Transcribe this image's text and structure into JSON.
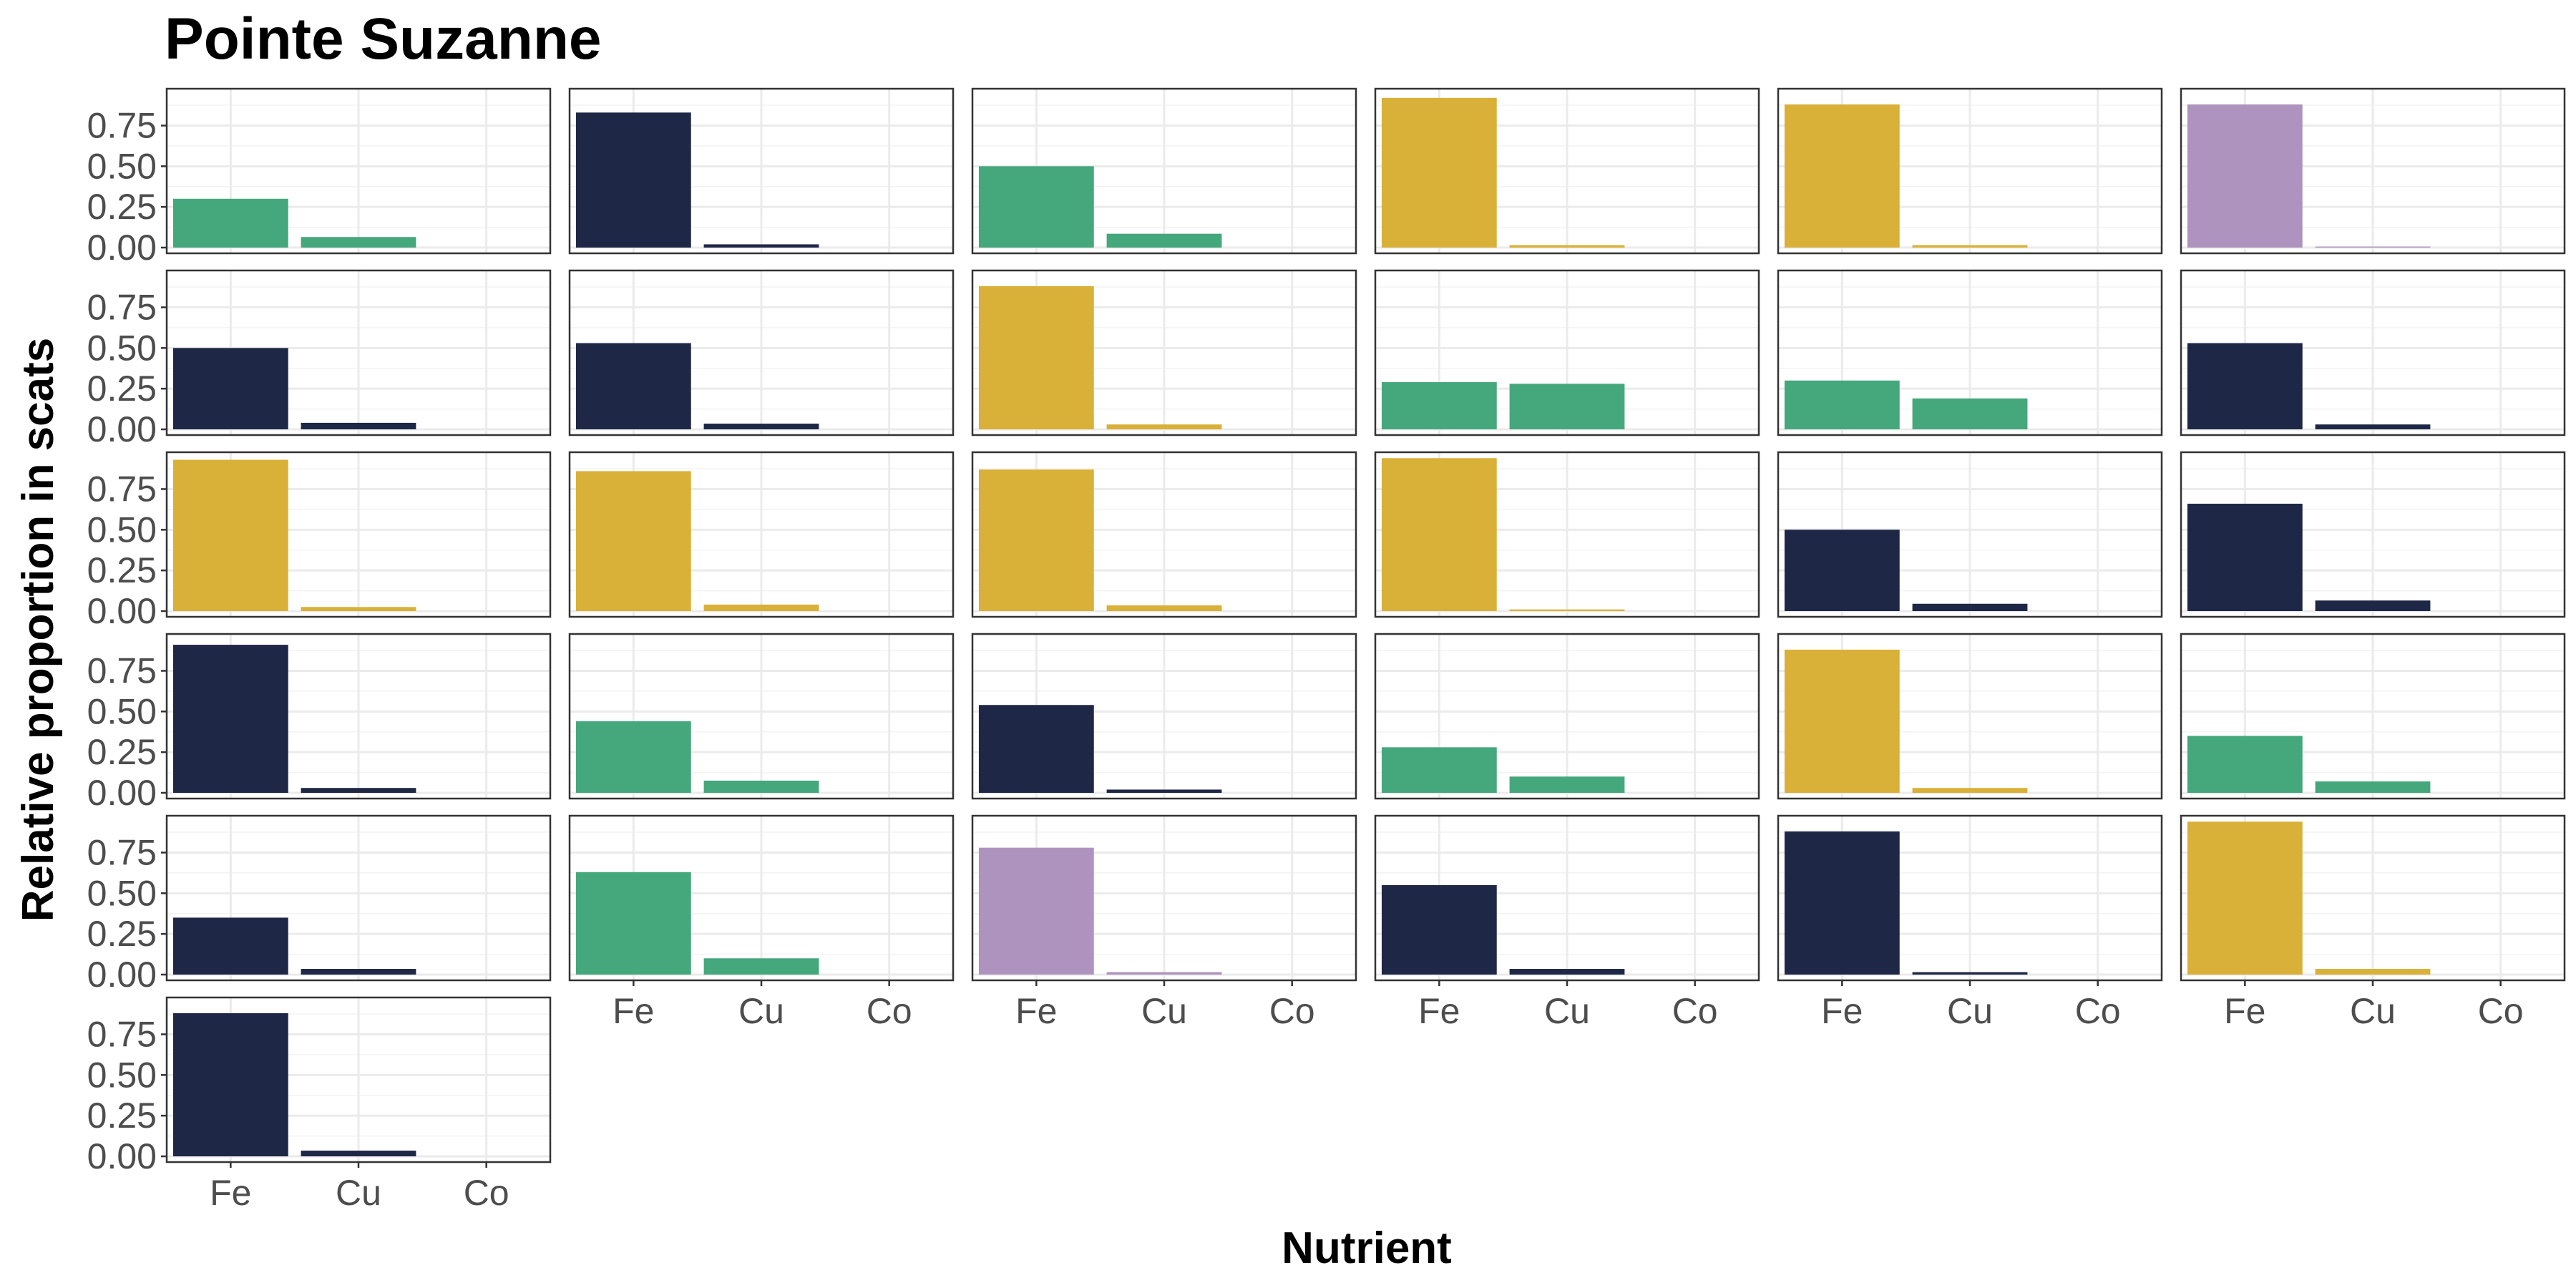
{
  "chart_data": {
    "type": "bar",
    "layout": "facet-grid",
    "title": "Pointe Suzanne",
    "xlabel": "Nutrient",
    "ylabel": "Relative proportion in scats",
    "categories": [
      "Fe",
      "Cu",
      "Co"
    ],
    "ylim": [
      0,
      0.95
    ],
    "yticks": [
      "0.00",
      "0.25",
      "0.50",
      "0.75"
    ],
    "ytick_values": [
      0,
      0.25,
      0.5,
      0.75
    ],
    "grid": true,
    "columns": 6,
    "colors": {
      "navy": "#1e2746",
      "green": "#45a77c",
      "gold": "#d9b038",
      "purple": "#ae93bf"
    },
    "panels": [
      {
        "color": "green",
        "values": [
          0.3,
          0.065,
          0.0
        ]
      },
      {
        "color": "navy",
        "values": [
          0.83,
          0.02,
          0.0
        ]
      },
      {
        "color": "green",
        "values": [
          0.5,
          0.085,
          0.0
        ]
      },
      {
        "color": "gold",
        "values": [
          0.92,
          0.015,
          0.0
        ]
      },
      {
        "color": "gold",
        "values": [
          0.88,
          0.015,
          0.0
        ]
      },
      {
        "color": "purple",
        "values": [
          0.88,
          0.005,
          0.0
        ]
      },
      {
        "color": "navy",
        "values": [
          0.5,
          0.04,
          0.0
        ]
      },
      {
        "color": "navy",
        "values": [
          0.53,
          0.035,
          0.0
        ]
      },
      {
        "color": "gold",
        "values": [
          0.88,
          0.03,
          0.0
        ]
      },
      {
        "color": "green",
        "values": [
          0.29,
          0.28,
          0.0
        ]
      },
      {
        "color": "green",
        "values": [
          0.3,
          0.19,
          0.0
        ]
      },
      {
        "color": "navy",
        "values": [
          0.53,
          0.03,
          0.0
        ]
      },
      {
        "color": "gold",
        "values": [
          0.93,
          0.025,
          0.0
        ]
      },
      {
        "color": "gold",
        "values": [
          0.86,
          0.04,
          0.0
        ]
      },
      {
        "color": "gold",
        "values": [
          0.87,
          0.035,
          0.0
        ]
      },
      {
        "color": "gold",
        "values": [
          0.94,
          0.01,
          0.0
        ]
      },
      {
        "color": "navy",
        "values": [
          0.5,
          0.045,
          0.0
        ]
      },
      {
        "color": "navy",
        "values": [
          0.66,
          0.065,
          0.0
        ]
      },
      {
        "color": "navy",
        "values": [
          0.91,
          0.03,
          0.0
        ]
      },
      {
        "color": "green",
        "values": [
          0.44,
          0.075,
          0.0
        ]
      },
      {
        "color": "navy",
        "values": [
          0.54,
          0.02,
          0.0
        ]
      },
      {
        "color": "green",
        "values": [
          0.28,
          0.1,
          0.0
        ]
      },
      {
        "color": "gold",
        "values": [
          0.88,
          0.03,
          0.0
        ]
      },
      {
        "color": "green",
        "values": [
          0.35,
          0.07,
          0.0
        ]
      },
      {
        "color": "navy",
        "values": [
          0.35,
          0.035,
          0.0
        ]
      },
      {
        "color": "green",
        "values": [
          0.63,
          0.1,
          0.0
        ]
      },
      {
        "color": "purple",
        "values": [
          0.78,
          0.015,
          0.0
        ]
      },
      {
        "color": "navy",
        "values": [
          0.55,
          0.035,
          0.0
        ]
      },
      {
        "color": "navy",
        "values": [
          0.88,
          0.015,
          0.0
        ]
      },
      {
        "color": "gold",
        "values": [
          0.94,
          0.035,
          0.0
        ]
      },
      {
        "color": "navy",
        "values": [
          0.88,
          0.035,
          0.0
        ]
      }
    ]
  }
}
